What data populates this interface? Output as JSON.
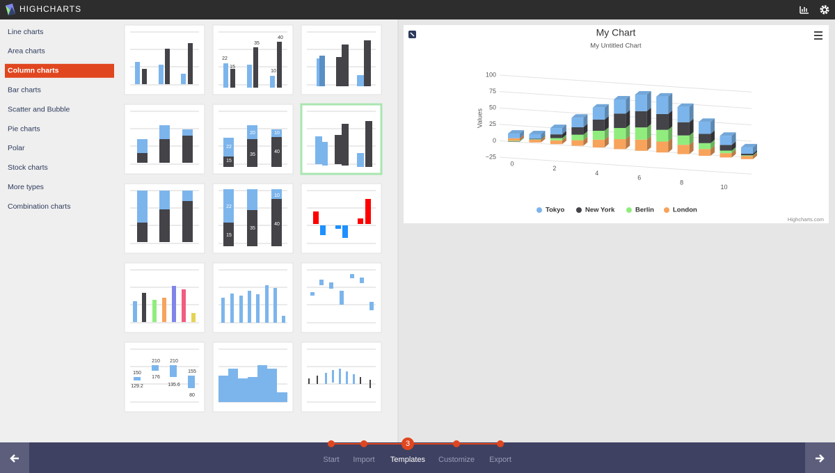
{
  "header": {
    "brand": "HIGHCHARTS"
  },
  "sidebar": {
    "items": [
      "Line charts",
      "Area charts",
      "Column charts",
      "Bar charts",
      "Scatter and Bubble",
      "Pie charts",
      "Polar",
      "Stock charts",
      "More types",
      "Combination charts"
    ],
    "active": 2
  },
  "thumbnails": {
    "basic_column_labels": [
      "22",
      "15",
      "35",
      "10",
      "40"
    ],
    "stacked_column_labels": [
      "22",
      "15",
      "20",
      "35",
      "10",
      "40"
    ],
    "percent_column_labels": [
      "22",
      "15",
      "35",
      "10",
      "40"
    ],
    "waterfall_labels": [
      "150",
      "129.2",
      "210",
      "176",
      "210",
      "135.6",
      "155",
      "80"
    ]
  },
  "chart_data": {
    "type": "bar3d",
    "title": "My Chart",
    "subtitle": "My Untitled Chart",
    "y_label": "Values",
    "credits": "Highcharts.com",
    "x": [
      0,
      1,
      2,
      3,
      4,
      5,
      6,
      7,
      8,
      9,
      10,
      11
    ],
    "xlim": [
      0,
      11
    ],
    "xticks": [
      0,
      2,
      4,
      6,
      8,
      10
    ],
    "ylim": [
      -25,
      100
    ],
    "yticks": [
      {
        "value": -25,
        "label": "−25"
      },
      0,
      25,
      50,
      75,
      100
    ],
    "grid": true,
    "stacked": true,
    "series": [
      {
        "name": "Tokyo",
        "color": "#7cb5ec",
        "values": [
          7.0,
          6.9,
          9.5,
          14.5,
          18.2,
          21.5,
          25.2,
          26.5,
          23.3,
          18.3,
          13.9,
          9.6
        ]
      },
      {
        "name": "New York",
        "color": "#434348",
        "values": [
          -0.2,
          0.8,
          5.7,
          11.3,
          17.0,
          22.0,
          24.8,
          24.1,
          20.1,
          14.1,
          8.6,
          2.5
        ]
      },
      {
        "name": "Berlin",
        "color": "#90ed7d",
        "values": [
          -0.9,
          0.6,
          3.5,
          8.4,
          13.5,
          17.0,
          18.6,
          17.9,
          14.3,
          9.0,
          3.9,
          1.0
        ]
      },
      {
        "name": "London",
        "color": "#f7a35c",
        "values": [
          3.9,
          4.2,
          5.7,
          8.5,
          11.9,
          15.2,
          17.0,
          16.6,
          14.2,
          10.3,
          6.6,
          4.8
        ]
      }
    ]
  },
  "footer": {
    "steps": [
      "Start",
      "Import",
      "Templates",
      "Customize",
      "Export"
    ],
    "current": 2,
    "current_number": 3
  }
}
